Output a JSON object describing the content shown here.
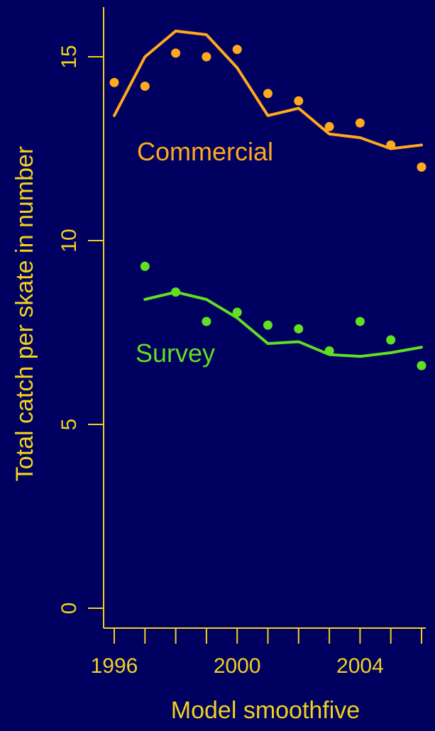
{
  "chart_data": {
    "type": "line",
    "xlabel": "Model smoothfive",
    "ylabel": "Total catch per skate in number",
    "xlim": [
      1996,
      2006
    ],
    "ylim": [
      0,
      15.5
    ],
    "x_ticks": [
      "1996",
      "2000",
      "2004"
    ],
    "x_tick_values": [
      1996,
      1997,
      1998,
      1999,
      2000,
      2001,
      2002,
      2003,
      2004,
      2005,
      2006
    ],
    "y_ticks": [
      "0",
      "5",
      "10",
      "15"
    ],
    "y_tick_values": [
      0,
      5,
      10,
      15
    ],
    "grid": false,
    "series": [
      {
        "name": "Commercial",
        "color": "#ffa91e",
        "points": {
          "x": [
            1996,
            1997,
            1998,
            1999,
            2000,
            2001,
            2002,
            2003,
            2004,
            2005,
            2006
          ],
          "y": [
            14.3,
            14.2,
            15.1,
            15.0,
            15.2,
            14.0,
            13.8,
            13.1,
            13.2,
            12.6,
            12.0
          ]
        },
        "fit": {
          "x": [
            1996,
            1997,
            1998,
            1999,
            2000,
            2001,
            2002,
            2003,
            2004,
            2005,
            2006
          ],
          "y": [
            13.4,
            15.0,
            15.7,
            15.6,
            14.7,
            13.4,
            13.6,
            12.9,
            12.8,
            12.5,
            12.6
          ]
        }
      },
      {
        "name": "Survey",
        "color": "#60e020",
        "points": {
          "x": [
            1997,
            1998,
            1999,
            2000,
            2001,
            2002,
            2003,
            2004,
            2005,
            2006
          ],
          "y": [
            9.3,
            8.6,
            7.8,
            8.05,
            7.7,
            7.6,
            7.0,
            7.8,
            7.3,
            6.6
          ]
        },
        "fit": {
          "x": [
            1997,
            1998,
            1999,
            2000,
            2001,
            2002,
            2003,
            2004,
            2005,
            2006
          ],
          "y": [
            8.4,
            8.6,
            8.4,
            7.9,
            7.2,
            7.25,
            6.9,
            6.85,
            6.95,
            7.1
          ]
        }
      }
    ]
  }
}
